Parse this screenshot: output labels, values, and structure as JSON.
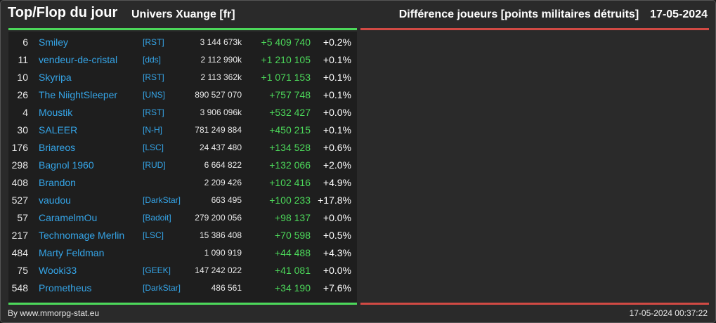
{
  "header": {
    "title": "Top/Flop du jour",
    "server": "Univers Xuange [fr]",
    "metric": "Différence joueurs [points militaires détruits]",
    "date": "17-05-2024"
  },
  "rows": [
    {
      "rank": "6",
      "name": "Smiley",
      "alliance": "[RST]",
      "points": "3 144 673k",
      "diff": "+5 409 740",
      "pct": "+0.2%"
    },
    {
      "rank": "11",
      "name": "vendeur-de-cristal",
      "alliance": "[dds]",
      "points": "2 112 990k",
      "diff": "+1 210 105",
      "pct": "+0.1%"
    },
    {
      "rank": "10",
      "name": "Skyripa",
      "alliance": "[RST]",
      "points": "2 113 362k",
      "diff": "+1 071 153",
      "pct": "+0.1%"
    },
    {
      "rank": "26",
      "name": "The NiightSleeper",
      "alliance": "[UNS]",
      "points": "890 527 070",
      "diff": "+757 748",
      "pct": "+0.1%"
    },
    {
      "rank": "4",
      "name": "Moustik",
      "alliance": "[RST]",
      "points": "3 906 096k",
      "diff": "+532 427",
      "pct": "+0.0%"
    },
    {
      "rank": "30",
      "name": "SALEER",
      "alliance": "[N-H]",
      "points": "781 249 884",
      "diff": "+450 215",
      "pct": "+0.1%"
    },
    {
      "rank": "176",
      "name": "Briareos",
      "alliance": "[LSC]",
      "points": "24 437 480",
      "diff": "+134 528",
      "pct": "+0.6%"
    },
    {
      "rank": "298",
      "name": "Bagnol 1960",
      "alliance": "[RUD]",
      "points": "6 664 822",
      "diff": "+132 066",
      "pct": "+2.0%"
    },
    {
      "rank": "408",
      "name": "Brandon",
      "alliance": "",
      "points": "2 209 426",
      "diff": "+102 416",
      "pct": "+4.9%"
    },
    {
      "rank": "527",
      "name": "vaudou",
      "alliance": "[DarkStar]",
      "points": "663 495",
      "diff": "+100 233",
      "pct": "+17.8%"
    },
    {
      "rank": "57",
      "name": "CaramelmOu",
      "alliance": "[Badoit]",
      "points": "279 200 056",
      "diff": "+98 137",
      "pct": "+0.0%"
    },
    {
      "rank": "217",
      "name": "Technomage Merlin",
      "alliance": "[LSC]",
      "points": "15 386 408",
      "diff": "+70 598",
      "pct": "+0.5%"
    },
    {
      "rank": "484",
      "name": "Marty Feldman",
      "alliance": "",
      "points": "1 090 919",
      "diff": "+44 488",
      "pct": "+4.3%"
    },
    {
      "rank": "75",
      "name": "Wooki33",
      "alliance": "[GEEK]",
      "points": "147 242 022",
      "diff": "+41 081",
      "pct": "+0.0%"
    },
    {
      "rank": "548",
      "name": "Prometheus",
      "alliance": "[DarkStar]",
      "points": "486 561",
      "diff": "+34 190",
      "pct": "+7.6%"
    }
  ],
  "footer": {
    "credit": "By www.mmorpg-stat.eu",
    "timestamp": "17-05-2024 00:37:22"
  },
  "colors": {
    "top_bar": "#4cd85a",
    "flop_bar": "#d14a44",
    "player_link": "#35a5e8",
    "positive_diff": "#4cd85a"
  }
}
